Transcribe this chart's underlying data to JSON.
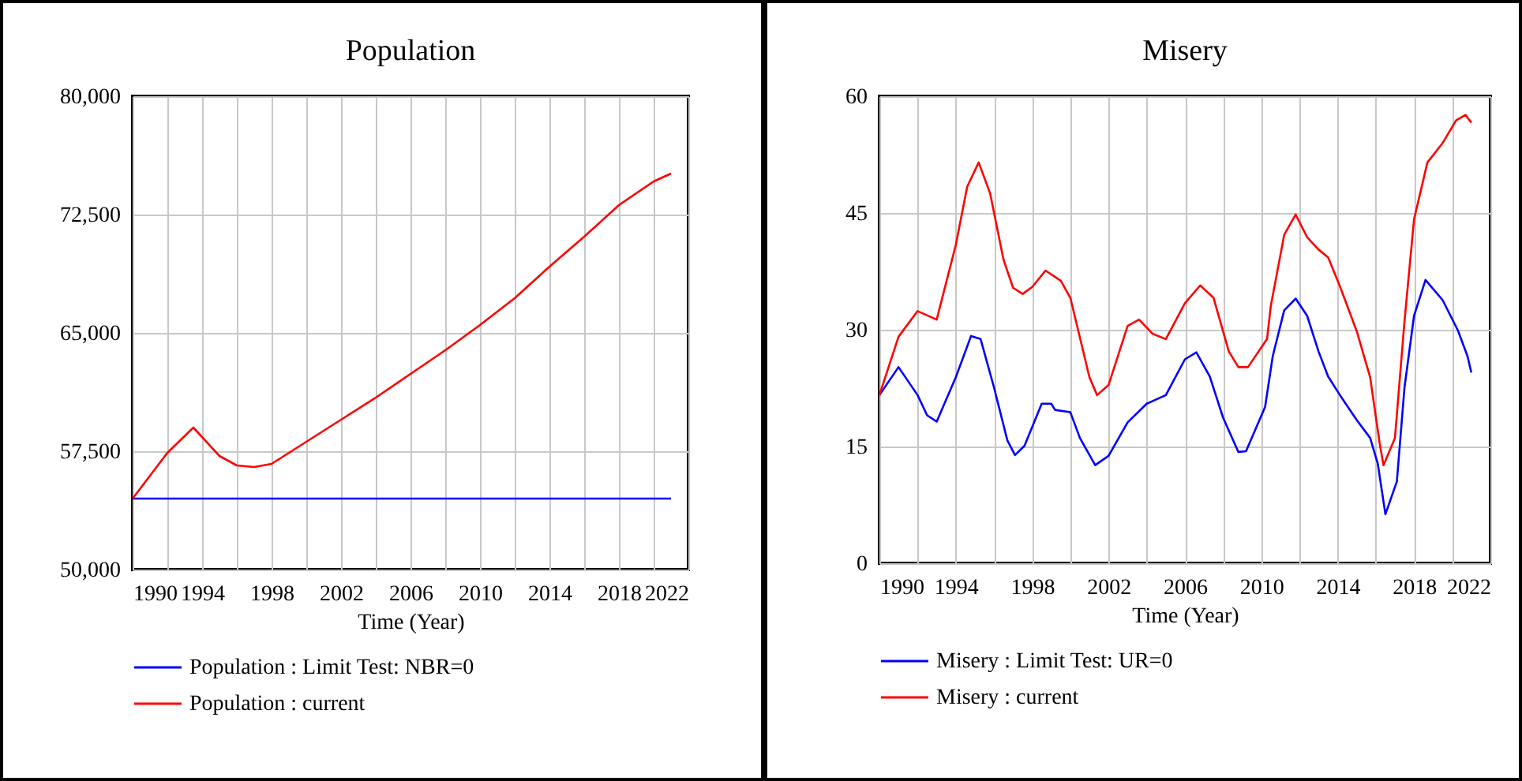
{
  "chart_data": [
    {
      "type": "line",
      "title": "Population",
      "xlabel": "Time (Year)",
      "xlim": [
        1990,
        2022
      ],
      "xticks": [
        1990,
        {
          "value": 1992,
          "label": null
        },
        1994,
        {
          "value": 1996,
          "label": null
        },
        1998,
        {
          "value": 2000,
          "label": null
        },
        2002,
        {
          "value": 2004,
          "label": null
        },
        2006,
        {
          "value": 2008,
          "label": null
        },
        2010,
        {
          "value": 2012,
          "label": null
        },
        2014,
        {
          "value": 2016,
          "label": null
        },
        2018,
        {
          "value": 2020,
          "label": null
        },
        2022
      ],
      "ylim": [
        50000,
        80000
      ],
      "yticks": [
        {
          "value": 50000,
          "label": "50,000"
        },
        {
          "value": 57500,
          "label": "57,500"
        },
        {
          "value": 65000,
          "label": "65,000"
        },
        {
          "value": 72500,
          "label": "72,500"
        },
        {
          "value": 80000,
          "label": "80,000"
        }
      ],
      "grid": true,
      "legend": "bottom",
      "line_style": "solid",
      "marker": "none",
      "series": [
        {
          "name": "Population : Limit Test: NBR=0",
          "color": "#0000ff",
          "x": [
            1990,
            2021
          ],
          "values": [
            54500,
            54500
          ]
        },
        {
          "name": "Population : current",
          "color": "#ff0000",
          "x": [
            1990,
            1992,
            1993.5,
            1995,
            1996,
            1997,
            1998,
            2000,
            2002,
            2004,
            2006,
            2008,
            2010,
            2012,
            2014,
            2016,
            2018,
            2020,
            2021
          ],
          "values": [
            54500,
            57400,
            59000,
            57200,
            56600,
            56500,
            56700,
            58100,
            59500,
            60900,
            62400,
            63900,
            65500,
            67200,
            69200,
            71100,
            73100,
            74600,
            75100
          ]
        }
      ]
    },
    {
      "type": "line",
      "title": "Misery",
      "xlabel": "Time (Year)",
      "xlim": [
        1990,
        2022
      ],
      "xticks": [
        1990,
        {
          "value": 1992,
          "label": null
        },
        1994,
        {
          "value": 1996,
          "label": null
        },
        1998,
        {
          "value": 2000,
          "label": null
        },
        2002,
        {
          "value": 2004,
          "label": null
        },
        2006,
        {
          "value": 2008,
          "label": null
        },
        2010,
        {
          "value": 2012,
          "label": null
        },
        2014,
        {
          "value": 2016,
          "label": null
        },
        2018,
        {
          "value": 2020,
          "label": null
        },
        2022
      ],
      "ylim": [
        0,
        60
      ],
      "yticks": [
        0,
        15,
        30,
        45,
        60
      ],
      "grid": true,
      "legend": "bottom",
      "line_style": "solid",
      "marker": "none",
      "series": [
        {
          "name": "Misery : Limit Test: UR=0",
          "color": "#0000ff",
          "x": [
            1990,
            1991,
            1992,
            1992.5,
            1993,
            1994,
            1994.8,
            1995.3,
            1996,
            1996.7,
            1997.1,
            1997.6,
            1998.5,
            1999,
            1999.2,
            2000,
            2000.5,
            2001.3,
            2002,
            2003,
            2004,
            2005,
            2006,
            2006.6,
            2007.3,
            2008,
            2008.8,
            2009.2,
            2010.2,
            2010.6,
            2011.2,
            2011.8,
            2012.4,
            2013,
            2013.5,
            2014.2,
            2015,
            2015.7,
            2016.1,
            2016.5,
            2017.1,
            2017.5,
            2018,
            2018.6,
            2019.5,
            2020.3,
            2020.8,
            2021
          ],
          "values": [
            21.6,
            25.2,
            21.6,
            19,
            18.2,
            23.9,
            29.2,
            28.8,
            22.6,
            15.8,
            13.9,
            15.1,
            20.5,
            20.5,
            19.7,
            19.4,
            16.1,
            12.6,
            13.8,
            18.1,
            20.5,
            21.6,
            26.2,
            27.1,
            24,
            18.7,
            14.3,
            14.4,
            20.1,
            26.6,
            32.5,
            34,
            31.8,
            27.2,
            24,
            21.3,
            18.4,
            16.1,
            12.8,
            6.3,
            10.5,
            22.6,
            31.8,
            36.4,
            33.8,
            29.9,
            26.6,
            24.5
          ]
        },
        {
          "name": "Misery : current",
          "color": "#ff0000",
          "x": [
            1990,
            1991,
            1992,
            1993,
            1994,
            1994.6,
            1995.2,
            1995.8,
            1996.5,
            1997,
            1997.5,
            1998,
            1998.7,
            1999.5,
            2000,
            2001,
            2001.4,
            2002,
            2003,
            2003.6,
            2004.3,
            2005,
            2006,
            2006.8,
            2007.5,
            2008.3,
            2008.8,
            2009.3,
            2010.3,
            2010.5,
            2011.2,
            2011.8,
            2012.4,
            2013,
            2013.5,
            2014.1,
            2015,
            2015.7,
            2016.2,
            2016.4,
            2017,
            2017.5,
            2018,
            2018.7,
            2019.5,
            2020.2,
            2020.7,
            2021
          ],
          "values": [
            21.6,
            29.1,
            32.4,
            31.3,
            40.9,
            48.4,
            51.5,
            47.5,
            39,
            35.4,
            34.6,
            35.5,
            37.6,
            36.3,
            34.1,
            23.9,
            21.6,
            22.9,
            30.5,
            31.3,
            29.5,
            28.8,
            33.4,
            35.7,
            34.1,
            27.2,
            25.2,
            25.2,
            28.8,
            33.1,
            42.2,
            44.8,
            41.9,
            40.3,
            39.3,
            35.7,
            29.8,
            23.9,
            15.4,
            12.6,
            16.1,
            31.1,
            44.2,
            51.5,
            54,
            56.9,
            57.6,
            56.6
          ]
        }
      ]
    }
  ]
}
